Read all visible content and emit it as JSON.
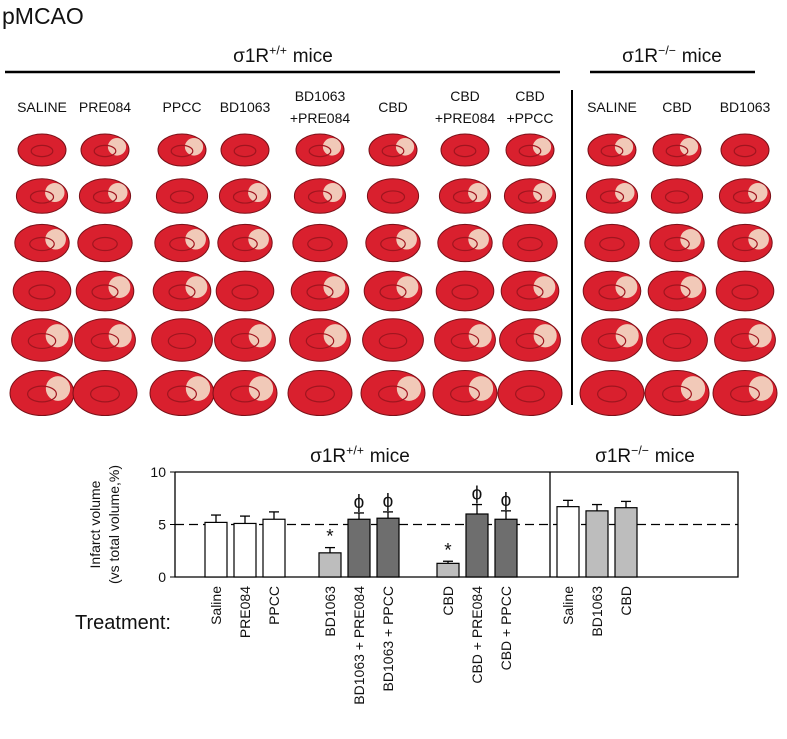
{
  "title": "pMCAO",
  "image_panel": {
    "groups": [
      {
        "header": {
          "base": "σ1R",
          "sup": "+/+",
          "tail": "mice"
        },
        "columns": [
          [
            "SALINE"
          ],
          [
            "PRE084"
          ],
          [
            "PPCC"
          ],
          [
            "BD1063"
          ],
          [
            "BD1063",
            "+PRE084"
          ],
          [
            "CBD"
          ],
          [
            "CBD",
            "+PRE084"
          ],
          [
            "CBD",
            "+PPCC"
          ]
        ]
      },
      {
        "header": {
          "base": "σ1R",
          "sup": "−/−",
          "tail": "mice"
        },
        "columns": [
          [
            "SALINE"
          ],
          [
            "CBD"
          ],
          [
            "BD1063"
          ]
        ]
      }
    ]
  },
  "chart_data": {
    "type": "bar",
    "ylabel": [
      "Infarct volume",
      "(vs total volume,%)"
    ],
    "treatment_label": "Treatment:",
    "ylim": [
      0,
      10
    ],
    "yticks": [
      0,
      5,
      10
    ],
    "reference_line": 5,
    "groups": [
      {
        "header": {
          "base": "σ1R",
          "sup": "+/+",
          "tail": "mice"
        },
        "clusters": [
          {
            "categories": [
              "Saline",
              "PRE084",
              "PPCC"
            ],
            "values": [
              5.2,
              5.1,
              5.5
            ],
            "errors": [
              0.7,
              0.7,
              0.7
            ],
            "colors": [
              "#ffffff",
              "#ffffff",
              "#ffffff"
            ],
            "annotations": [
              null,
              null,
              null
            ]
          },
          {
            "categories": [
              "BD1063",
              "BD1063 + PRE084",
              "BD1063 + PPCC"
            ],
            "values": [
              2.3,
              5.5,
              5.6
            ],
            "errors": [
              0.5,
              0.6,
              0.6
            ],
            "colors": [
              "#bdbdbd",
              "#6e6e6e",
              "#6e6e6e"
            ],
            "annotations": [
              "*",
              "ϕ",
              "ϕ"
            ]
          },
          {
            "categories": [
              "CBD",
              "CBD + PRE084",
              "CBD + PPCC"
            ],
            "values": [
              1.3,
              6.0,
              5.5
            ],
            "errors": [
              0.2,
              0.9,
              0.8
            ],
            "colors": [
              "#bdbdbd",
              "#6e6e6e",
              "#6e6e6e"
            ],
            "annotations": [
              "*",
              "ϕ",
              "ϕ"
            ]
          }
        ]
      },
      {
        "header": {
          "base": "σ1R",
          "sup": "−/−",
          "tail": "mice"
        },
        "clusters": [
          {
            "categories": [
              "Saline",
              "BD1063",
              "CBD"
            ],
            "values": [
              6.7,
              6.3,
              6.6
            ],
            "errors": [
              0.6,
              0.6,
              0.6
            ],
            "colors": [
              "#ffffff",
              "#bdbdbd",
              "#bdbdbd"
            ],
            "annotations": [
              null,
              null,
              null
            ]
          }
        ]
      }
    ]
  }
}
